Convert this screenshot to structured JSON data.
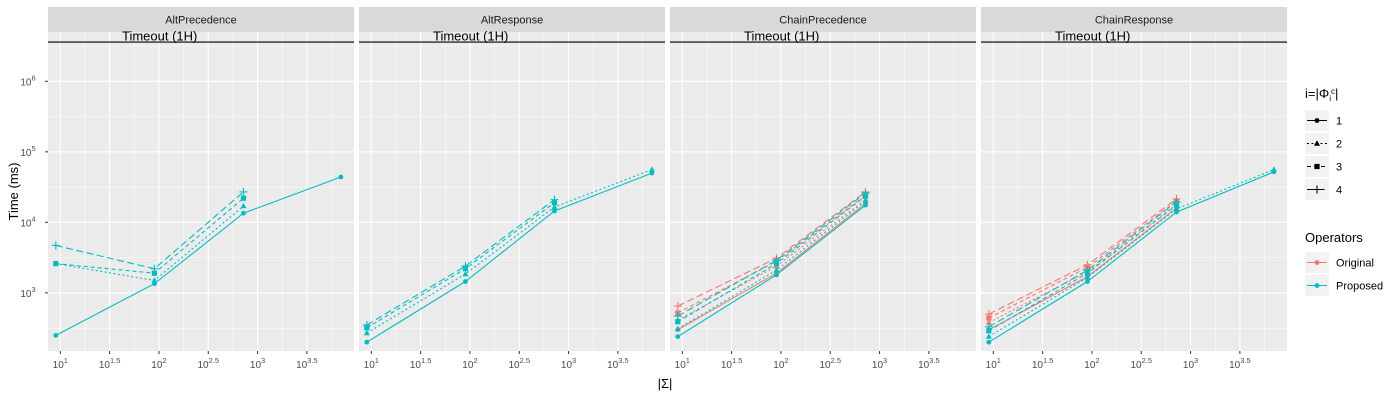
{
  "chart_data": {
    "type": "line",
    "ylabel": "Time (ms)",
    "xlabel": "|Σ|",
    "xscale": "log10",
    "yscale": "log10",
    "xlim": [
      7.5,
      9500
    ],
    "ylim": [
      150,
      5000000
    ],
    "x_ticks": [
      {
        "value": 10,
        "base": "10",
        "exp": "1"
      },
      {
        "value": 31.62,
        "base": "10",
        "exp": "1.5"
      },
      {
        "value": 100,
        "base": "10",
        "exp": "2"
      },
      {
        "value": 316.2,
        "base": "10",
        "exp": "2.5"
      },
      {
        "value": 1000,
        "base": "10",
        "exp": "3"
      },
      {
        "value": 3162,
        "base": "10",
        "exp": "3.5"
      }
    ],
    "y_ticks": [
      {
        "value": 1000,
        "base": "10",
        "exp": "3"
      },
      {
        "value": 10000,
        "base": "10",
        "exp": "4"
      },
      {
        "value": 100000,
        "base": "10",
        "exp": "5"
      },
      {
        "value": 1000000,
        "base": "10",
        "exp": "6"
      }
    ],
    "timeout": {
      "value": 3600000,
      "label": "Timeout (1H)"
    },
    "grid": true,
    "legend": {
      "placement": "right",
      "shape_title": "i=|Φ",
      "shape_title_sub": "i",
      "shape_title_sup": "c",
      "shape_title_end": "|",
      "shapes": [
        {
          "label": "1",
          "marker": "circle",
          "dash": "solid"
        },
        {
          "label": "2",
          "marker": "triangle",
          "dash": "dotted"
        },
        {
          "label": "3",
          "marker": "square",
          "dash": "shortdash"
        },
        {
          "label": "4",
          "marker": "plus",
          "dash": "longdash"
        }
      ],
      "color_title": "Operators",
      "colors": [
        {
          "label": "Original",
          "color": "#F8766D"
        },
        {
          "label": "Proposed",
          "color": "#00BFC4"
        }
      ]
    },
    "facets": [
      {
        "title": "AltPrecedence",
        "series": [
          {
            "operator": "Proposed",
            "i": "1",
            "x": [
              9,
              90,
              720,
              7000
            ],
            "y": [
              250,
              1350,
              13500,
              44000
            ]
          },
          {
            "operator": "Proposed",
            "i": "2",
            "x": [
              9,
              90,
              720
            ],
            "y": [
              2600,
              1500,
              17000
            ]
          },
          {
            "operator": "Proposed",
            "i": "3",
            "x": [
              9,
              90,
              720
            ],
            "y": [
              2600,
              1900,
              22000
            ]
          },
          {
            "operator": "Proposed",
            "i": "4",
            "x": [
              9,
              90,
              720
            ],
            "y": [
              4700,
              2200,
              27000
            ]
          }
        ]
      },
      {
        "title": "AltResponse",
        "series": [
          {
            "operator": "Proposed",
            "i": "1",
            "x": [
              9,
              90,
              720,
              7000
            ],
            "y": [
              200,
              1450,
              14500,
              50000
            ]
          },
          {
            "operator": "Proposed",
            "i": "2",
            "x": [
              9,
              90,
              720,
              7000
            ],
            "y": [
              270,
              1850,
              16500,
              56000
            ]
          },
          {
            "operator": "Proposed",
            "i": "3",
            "x": [
              9,
              90,
              720
            ],
            "y": [
              320,
              2200,
              19000
            ]
          },
          {
            "operator": "Proposed",
            "i": "4",
            "x": [
              9,
              90,
              720
            ],
            "y": [
              350,
              2400,
              21000
            ]
          }
        ]
      },
      {
        "title": "ChainPrecedence",
        "series": [
          {
            "operator": "Original",
            "i": "1",
            "x": [
              9,
              90,
              720
            ],
            "y": [
              300,
              1900,
              18500
            ]
          },
          {
            "operator": "Original",
            "i": "2",
            "x": [
              9,
              90,
              720
            ],
            "y": [
              410,
              2400,
              21000
            ]
          },
          {
            "operator": "Original",
            "i": "3",
            "x": [
              9,
              90,
              720
            ],
            "y": [
              520,
              2800,
              24000
            ]
          },
          {
            "operator": "Original",
            "i": "4",
            "x": [
              9,
              90,
              720
            ],
            "y": [
              650,
              3100,
              27000
            ]
          },
          {
            "operator": "Proposed",
            "i": "1",
            "x": [
              9,
              90,
              720
            ],
            "y": [
              240,
              1800,
              17500
            ]
          },
          {
            "operator": "Proposed",
            "i": "2",
            "x": [
              9,
              90,
              720
            ],
            "y": [
              310,
              2100,
              20000
            ]
          },
          {
            "operator": "Proposed",
            "i": "3",
            "x": [
              9,
              90,
              720
            ],
            "y": [
              390,
              2600,
              23500
            ]
          },
          {
            "operator": "Proposed",
            "i": "4",
            "x": [
              9,
              90,
              720
            ],
            "y": [
              470,
              2900,
              26000
            ]
          }
        ]
      },
      {
        "title": "ChainResponse",
        "series": [
          {
            "operator": "Original",
            "i": "1",
            "x": [
              9,
              90,
              720
            ],
            "y": [
              300,
              1700,
              16000
            ]
          },
          {
            "operator": "Original",
            "i": "2",
            "x": [
              9,
              90,
              720
            ],
            "y": [
              380,
              2000,
              18000
            ]
          },
          {
            "operator": "Original",
            "i": "3",
            "x": [
              9,
              90,
              720
            ],
            "y": [
              440,
              2300,
              20000
            ]
          },
          {
            "operator": "Original",
            "i": "4",
            "x": [
              9,
              90,
              720
            ],
            "y": [
              500,
              2500,
              21500
            ]
          },
          {
            "operator": "Proposed",
            "i": "1",
            "x": [
              9,
              90,
              720,
              7000
            ],
            "y": [
              200,
              1450,
              14000,
              52000
            ]
          },
          {
            "operator": "Proposed",
            "i": "2",
            "x": [
              9,
              90,
              720,
              7000
            ],
            "y": [
              240,
              1650,
              15500,
              56000
            ]
          },
          {
            "operator": "Proposed",
            "i": "3",
            "x": [
              9,
              90,
              720
            ],
            "y": [
              290,
              1900,
              17500
            ]
          },
          {
            "operator": "Proposed",
            "i": "4",
            "x": [
              9,
              90,
              720
            ],
            "y": [
              330,
              2100,
              19500
            ]
          }
        ]
      }
    ]
  }
}
